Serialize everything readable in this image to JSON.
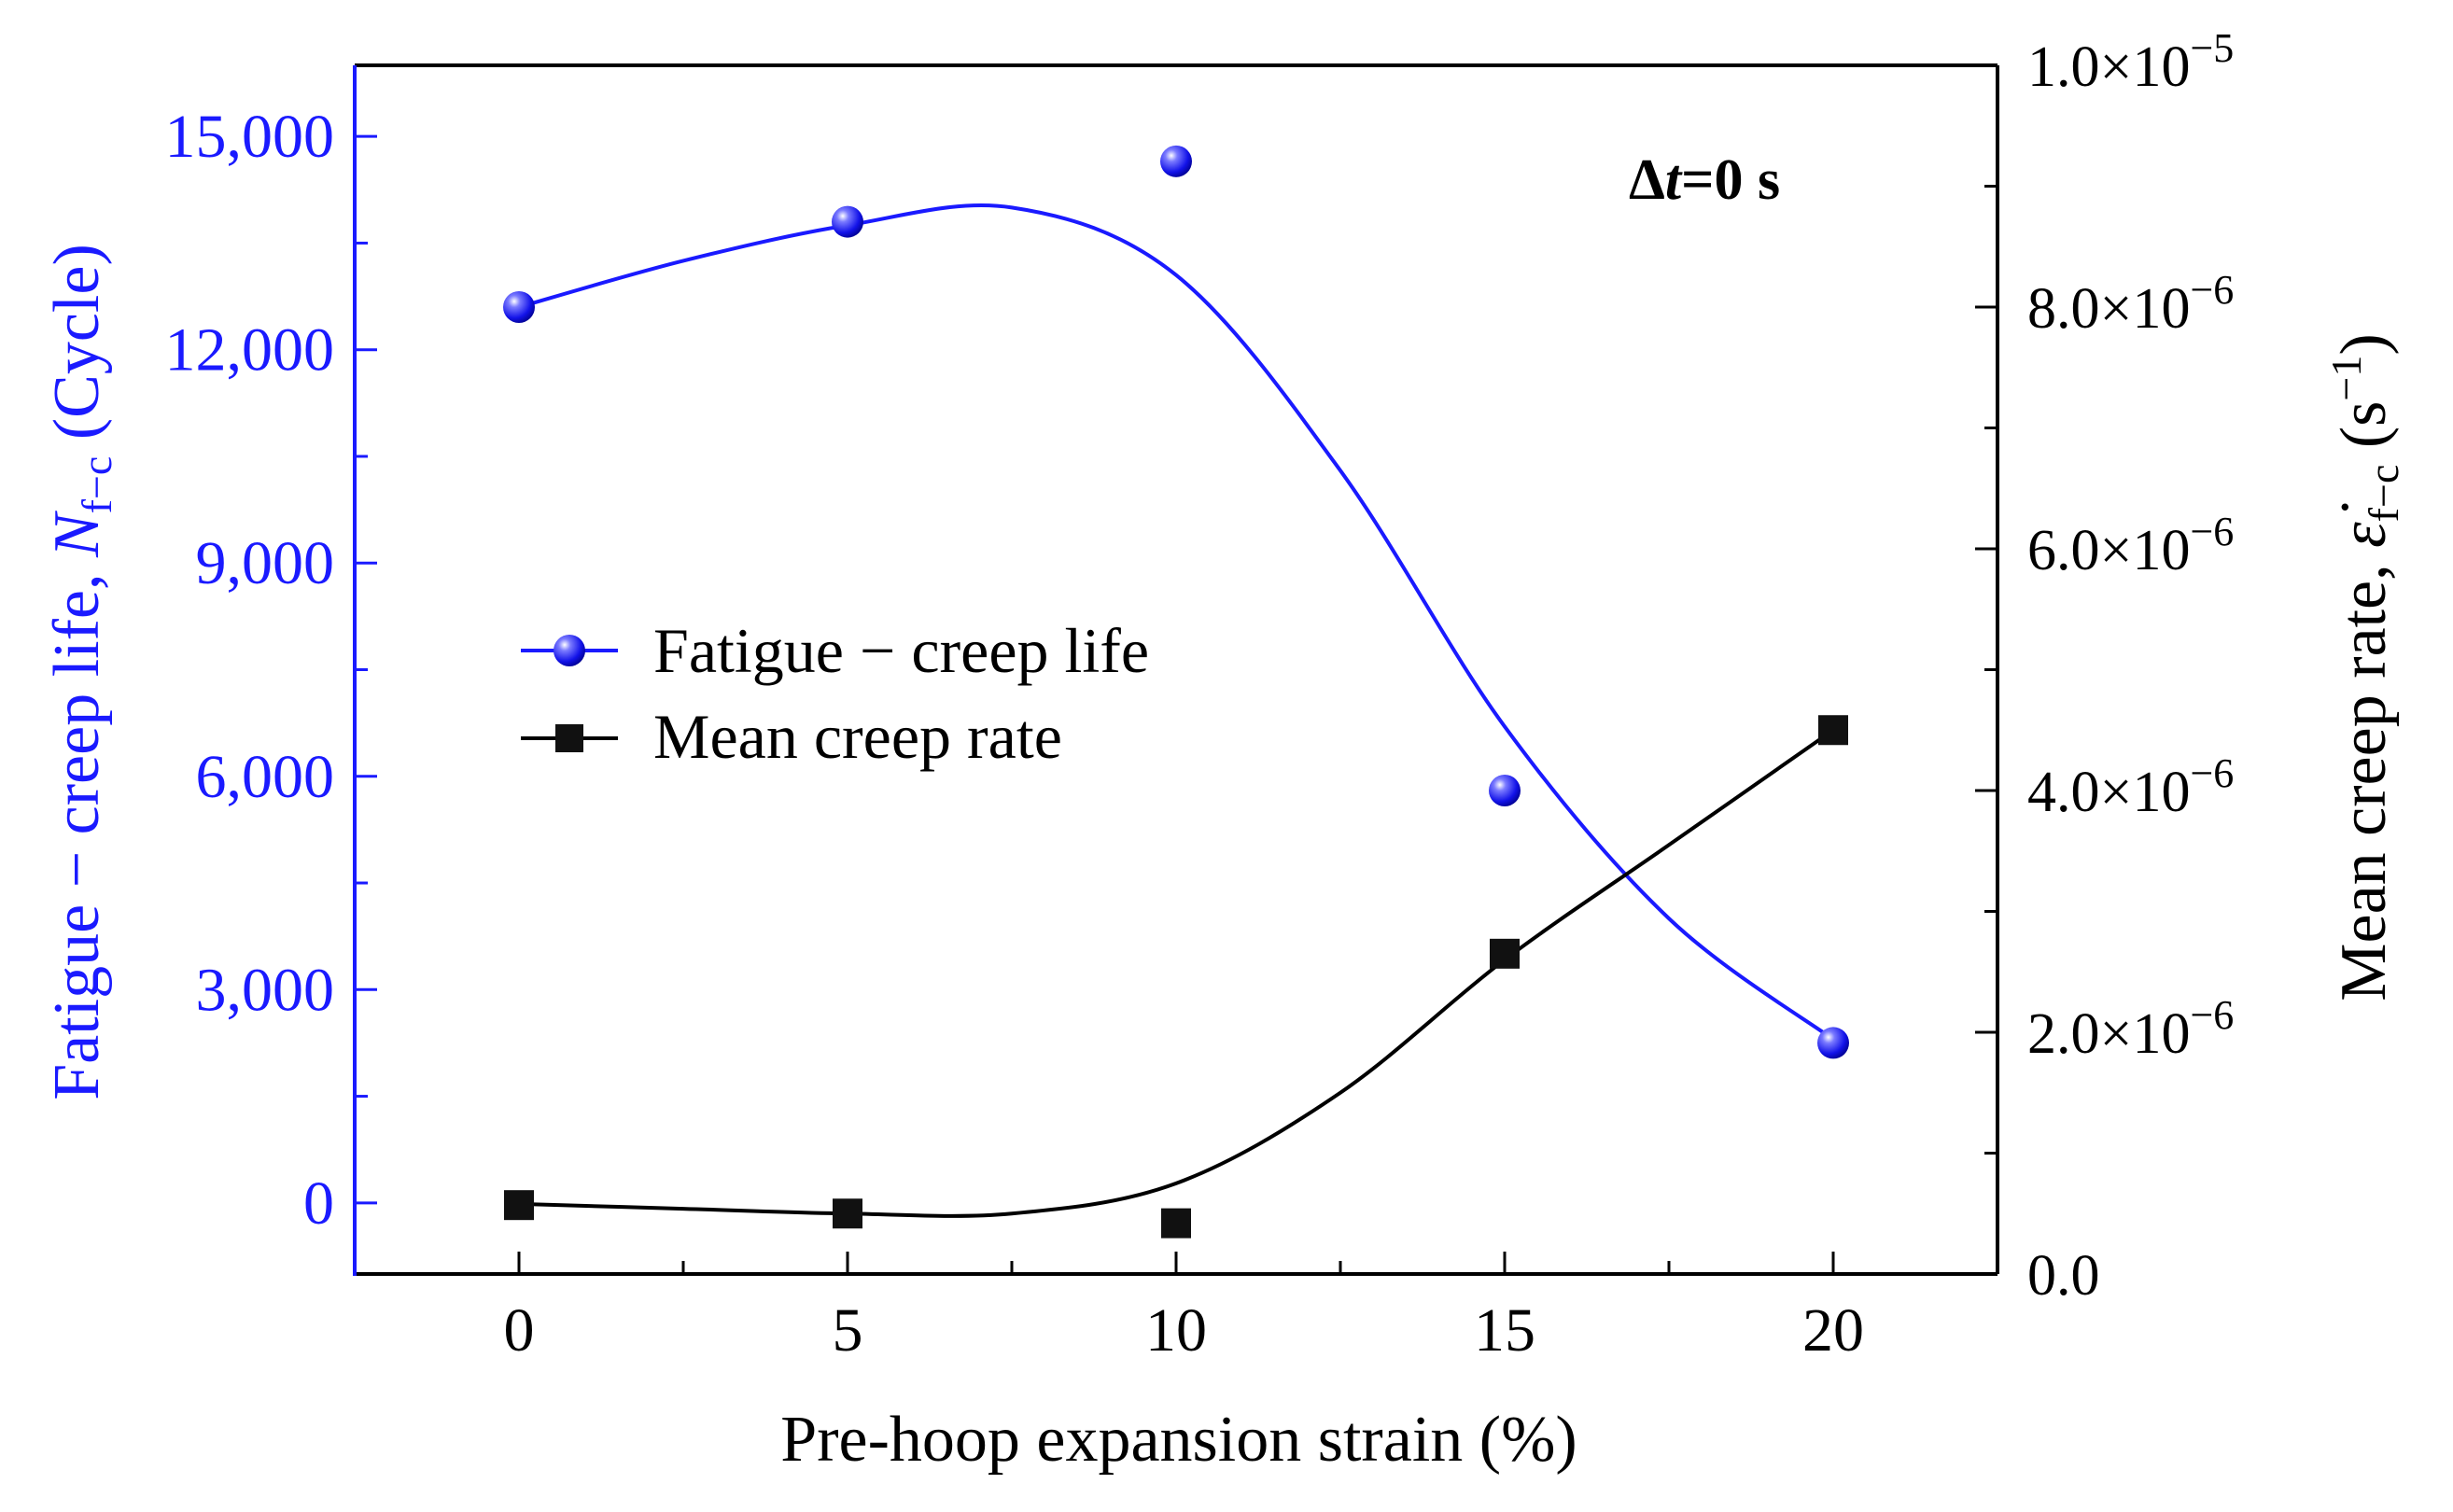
{
  "chart_data": {
    "type": "line",
    "xlabel": "Pre-hoop expansion strain (%)",
    "ylabel_left": {
      "prefix": "Fatigue − creep life, ",
      "symbol": "N",
      "subscript": "f−c",
      "suffix": " (Cycle)"
    },
    "ylabel_right": {
      "prefix": "Mean creep rate, ",
      "symbol": "ε̇",
      "subscript": "f−c",
      "unit_open": " (s",
      "unit_sup": "−1",
      "unit_close": ")"
    },
    "x": [
      0,
      5,
      10,
      15,
      20
    ],
    "xlim": [
      -2.5,
      22.5
    ],
    "x_ticks": [
      "0",
      "5",
      "10",
      "15",
      "20"
    ],
    "ylim_left": [
      -1000,
      16000
    ],
    "y_ticks_left": [
      {
        "value": 0,
        "label": "0"
      },
      {
        "value": 3000,
        "label": "3,000"
      },
      {
        "value": 6000,
        "label": "6,000"
      },
      {
        "value": 9000,
        "label": "9,000"
      },
      {
        "value": 12000,
        "label": "12,000"
      },
      {
        "value": 15000,
        "label": "15,000"
      }
    ],
    "ylim_right": [
      0,
      1e-05
    ],
    "y_ticks_right": [
      {
        "value": 0,
        "base": "0.0",
        "exp": ""
      },
      {
        "value": 2e-06,
        "base": "2.0×10",
        "exp": "−6"
      },
      {
        "value": 4e-06,
        "base": "4.0×10",
        "exp": "−6"
      },
      {
        "value": 6e-06,
        "base": "6.0×10",
        "exp": "−6"
      },
      {
        "value": 8e-06,
        "base": "8.0×10",
        "exp": "−6"
      },
      {
        "value": 1e-05,
        "base": "1.0×10",
        "exp": "−5"
      }
    ],
    "series": [
      {
        "name": "Fatigue − creep life",
        "axis": "left",
        "marker": "sphere",
        "color": "#1a1aff",
        "values": [
          12600,
          13800,
          14650,
          5800,
          2250
        ],
        "fit_curve": [
          [
            0,
            12600
          ],
          [
            2.5,
            13250
          ],
          [
            5,
            13750
          ],
          [
            7.5,
            14000
          ],
          [
            10,
            13050
          ],
          [
            12.5,
            10300
          ],
          [
            15,
            6700
          ],
          [
            17.5,
            4000
          ],
          [
            20,
            2300
          ]
        ]
      },
      {
        "name": "Mean creep rate",
        "axis": "right",
        "marker": "square",
        "color": "#000000",
        "values": [
          5.7e-07,
          5e-07,
          4.2e-07,
          2.65e-06,
          4.5e-06
        ],
        "fit_curve": [
          [
            0,
            5.8e-07
          ],
          [
            2.5,
            5.4e-07
          ],
          [
            5,
            5e-07
          ],
          [
            7.5,
            5e-07
          ],
          [
            10,
            7.5e-07
          ],
          [
            12.5,
            1.5e-06
          ],
          [
            15,
            2.6e-06
          ],
          [
            17.5,
            3.55e-06
          ],
          [
            20,
            4.5e-06
          ]
        ]
      }
    ],
    "annotation": {
      "delta": "Δ",
      "symbol": "t",
      "rest": "=0 s"
    },
    "legend_position": "center-left"
  }
}
